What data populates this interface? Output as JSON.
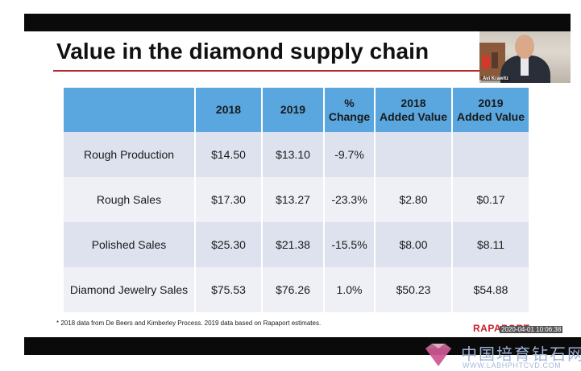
{
  "slide": {
    "title": "Value in the diamond supply chain",
    "presenter_name": "Avi Krawitz",
    "table": {
      "headers": [
        {
          "line1": "",
          "line2": ""
        },
        {
          "line1": "2018",
          "line2": ""
        },
        {
          "line1": "2019",
          "line2": ""
        },
        {
          "line1": "%",
          "line2": "Change"
        },
        {
          "line1": "2018",
          "line2": "Added Value"
        },
        {
          "line1": "2019",
          "line2": "Added Value"
        }
      ],
      "rows": [
        [
          "Rough Production",
          "$14.50",
          "$13.10",
          "-9.7%",
          "",
          ""
        ],
        [
          "Rough Sales",
          "$17.30",
          "$13.27",
          "-23.3%",
          "$2.80",
          "$0.17"
        ],
        [
          "Polished Sales",
          "$25.30",
          "$21.38",
          "-15.5%",
          "$8.00",
          "$8.11"
        ],
        [
          "Diamond Jewelry Sales",
          "$75.53",
          "$76.26",
          "1.0%",
          "$50.23",
          "$54.88"
        ]
      ]
    },
    "footnote": "* 2018 data from De Beers and Kimberley Process. 2019 data based on Rapaport estimates.",
    "brand": "RAPAPORT",
    "timestamp": "2020-04-01  10:06:38"
  },
  "watermark": {
    "title_cn": "中国培育钻石网",
    "url": "WWW.LABHPHTCVD.COM"
  },
  "colors": {
    "header_blue": "#5aa7e0",
    "row_dark": "#dde2ee",
    "row_light": "#eef0f6",
    "title_rule": "#b52a2a",
    "brand_red": "#c8202a"
  }
}
